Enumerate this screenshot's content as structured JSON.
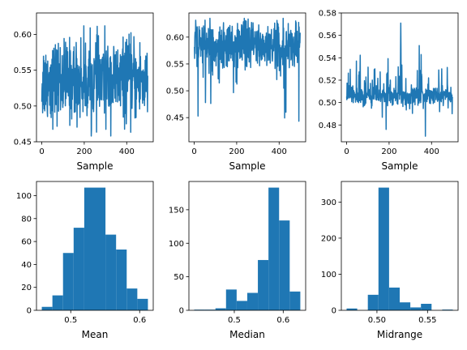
{
  "chart_data": [
    {
      "type": "line",
      "xlabel": "Sample",
      "series_color": "#1f77b4",
      "n_samples": 500,
      "xlim": [
        -25,
        525
      ],
      "ylim": [
        0.45,
        0.63
      ],
      "xticks": [
        0,
        200,
        400
      ],
      "yticks": [
        0.45,
        0.5,
        0.55,
        0.6
      ],
      "ytick_labels": [
        "0.45",
        "0.50",
        "0.55",
        "0.60"
      ],
      "y_center": 0.535,
      "y_spread": 0.028,
      "y_min": 0.458,
      "y_max": 0.612
    },
    {
      "type": "line",
      "xlabel": "Sample",
      "series_color": "#1f77b4",
      "n_samples": 500,
      "xlim": [
        -25,
        525
      ],
      "ylim": [
        0.405,
        0.645
      ],
      "xticks": [
        0,
        200,
        400
      ],
      "yticks": [
        0.45,
        0.5,
        0.55,
        0.6
      ],
      "ytick_labels": [
        "0.45",
        "0.50",
        "0.55",
        "0.60"
      ],
      "y_center": 0.585,
      "y_spread": 0.022,
      "y_min": 0.418,
      "y_max": 0.635
    },
    {
      "type": "line",
      "xlabel": "Sample",
      "series_color": "#1f77b4",
      "n_samples": 500,
      "xlim": [
        -25,
        525
      ],
      "ylim": [
        0.465,
        0.58
      ],
      "xticks": [
        0,
        200,
        400
      ],
      "yticks": [
        0.48,
        0.5,
        0.52,
        0.54,
        0.56,
        0.58
      ],
      "ytick_labels": [
        "0.48",
        "0.50",
        "0.52",
        "0.54",
        "0.56",
        "0.58"
      ],
      "y_center": 0.506,
      "y_spread": 0.004,
      "y_min": 0.47,
      "y_max": 0.575
    },
    {
      "type": "bar",
      "xlabel": "Mean",
      "series_color": "#1f77b4",
      "bin_edges": [
        0.458,
        0.4734,
        0.4888,
        0.5042,
        0.5196,
        0.535,
        0.5504,
        0.5658,
        0.5812,
        0.5966,
        0.612
      ],
      "counts": [
        3,
        13,
        50,
        72,
        107,
        107,
        66,
        53,
        19,
        10
      ],
      "xlim": [
        0.4503,
        0.6197
      ],
      "ylim": [
        0,
        112.35
      ],
      "xticks": [
        0.5,
        0.6
      ],
      "xtick_labels": [
        "0.5",
        "0.6"
      ],
      "yticks": [
        0,
        20,
        40,
        60,
        80,
        100
      ],
      "ytick_labels": [
        "0",
        "20",
        "40",
        "60",
        "80",
        "100"
      ]
    },
    {
      "type": "bar",
      "xlabel": "Median",
      "series_color": "#1f77b4",
      "bin_edges": [
        0.418,
        0.4397,
        0.4614,
        0.4831,
        0.5048,
        0.5265,
        0.5482,
        0.5699,
        0.5916,
        0.6133,
        0.635
      ],
      "counts": [
        1,
        1,
        3,
        31,
        14,
        26,
        75,
        183,
        134,
        28
      ],
      "xlim": [
        0.4072,
        0.6459
      ],
      "ylim": [
        0,
        192.15
      ],
      "xticks": [
        0.5,
        0.6
      ],
      "xtick_labels": [
        "0.5",
        "0.6"
      ],
      "yticks": [
        0,
        50,
        100,
        150
      ],
      "ytick_labels": [
        "0",
        "50",
        "100",
        "150"
      ]
    },
    {
      "type": "bar",
      "xlabel": "Midrange",
      "series_color": "#1f77b4",
      "bin_edges": [
        0.47,
        0.4805,
        0.491,
        0.5015,
        0.512,
        0.5225,
        0.533,
        0.5435,
        0.554,
        0.5645,
        0.575
      ],
      "counts": [
        5,
        0,
        43,
        340,
        63,
        22,
        8,
        18,
        0,
        2
      ],
      "xlim": [
        0.4648,
        0.5802
      ],
      "ylim": [
        0,
        357
      ],
      "xticks": [
        0.5,
        0.55
      ],
      "xtick_labels": [
        "0.50",
        "0.55"
      ],
      "yticks": [
        0,
        100,
        200,
        300
      ],
      "ytick_labels": [
        "0",
        "100",
        "200",
        "300"
      ]
    }
  ]
}
